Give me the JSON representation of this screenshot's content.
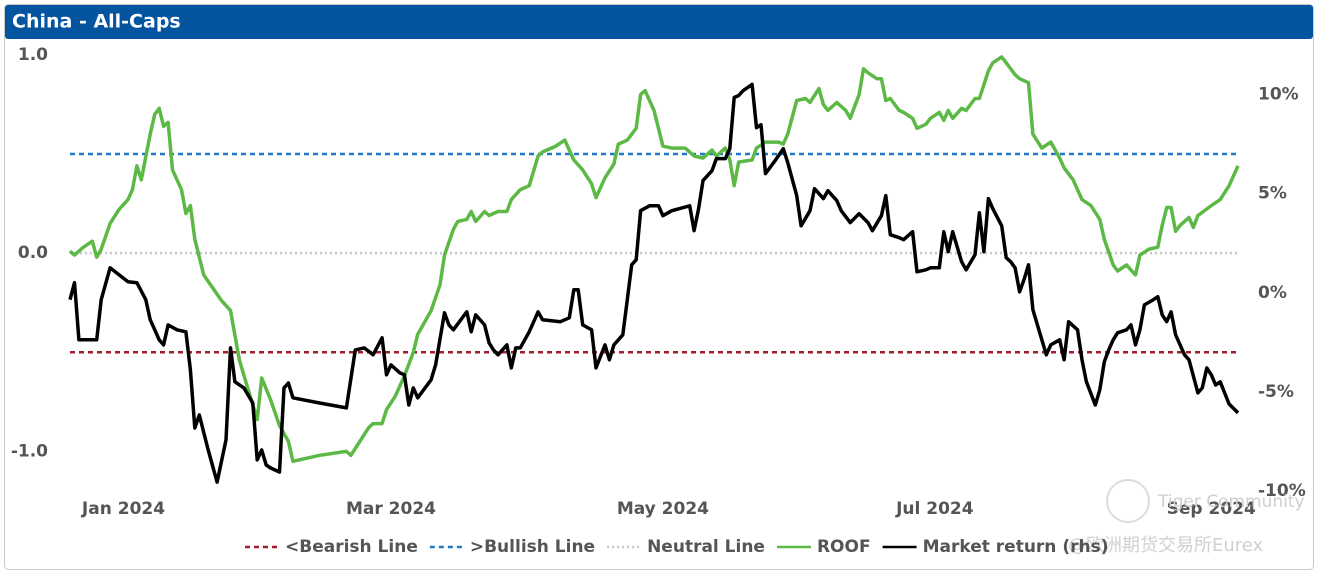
{
  "chart_data": {
    "type": "line",
    "title": "China - All-Caps",
    "xlim": [
      0,
      262
    ],
    "xticks": [
      {
        "value": 12,
        "label": "Jan 2024"
      },
      {
        "value": 72,
        "label": "Mar 2024"
      },
      {
        "value": 133,
        "label": "May 2024"
      },
      {
        "value": 194,
        "label": "Jul 2024"
      },
      {
        "value": 256,
        "label": "Sep 2024"
      }
    ],
    "ylim": [
      -1.2,
      1.05
    ],
    "yticks": [
      {
        "value": -1,
        "label": "-1.0"
      },
      {
        "value": 0,
        "label": "0.0"
      },
      {
        "value": 1,
        "label": "1.0"
      }
    ],
    "y2lim": [
      -10,
      12.5
    ],
    "y2ticks": [
      {
        "value": -10,
        "label": "-10%"
      },
      {
        "value": -5,
        "label": "-5%"
      },
      {
        "value": 0,
        "label": "0%"
      },
      {
        "value": 5,
        "label": "5%"
      },
      {
        "value": 10,
        "label": "10%"
      }
    ],
    "reference_lines": [
      {
        "name": "<Bearish Line",
        "value": -0.5,
        "color": "#a01e2d",
        "style": "dashed"
      },
      {
        "name": ">Bullish Line",
        "value": 0.5,
        "color": "#1f78c8",
        "style": "dashed"
      },
      {
        "name": "Neutral Line",
        "value": 0,
        "color": "#c8c8c8",
        "style": "dotted"
      }
    ],
    "series": [
      {
        "name": "ROOF",
        "color": "#5cb946",
        "x": [
          0,
          1,
          3,
          5,
          6,
          7,
          9,
          11,
          13,
          14,
          15,
          16,
          18,
          19,
          20,
          21,
          22,
          23,
          25,
          26,
          27,
          28,
          30,
          34,
          36,
          38,
          40,
          42,
          43,
          45,
          47,
          49,
          50,
          56,
          62,
          63,
          65,
          67,
          68,
          70,
          71,
          73,
          75,
          77,
          78,
          81,
          83,
          84,
          86,
          87,
          89,
          90,
          91,
          93,
          94,
          96,
          98,
          99,
          101,
          103,
          105,
          106,
          109,
          111,
          113,
          115,
          117,
          118,
          120,
          122,
          123,
          125,
          127,
          128,
          129,
          130,
          131,
          133,
          135,
          138,
          140,
          142,
          144,
          145,
          147,
          148,
          149,
          150,
          153,
          154,
          156,
          159,
          160,
          161,
          163,
          165,
          166,
          168,
          169,
          170,
          172,
          174,
          175,
          177,
          178,
          179,
          181,
          182,
          183,
          184,
          186,
          187,
          189,
          190,
          192,
          193,
          195,
          196,
          197,
          198,
          200,
          201,
          203,
          204,
          206,
          207,
          209,
          210,
          212,
          213,
          215,
          216,
          218,
          220,
          222,
          223,
          225,
          227,
          229,
          231,
          232,
          234,
          235,
          237,
          239,
          240,
          242,
          244,
          245,
          246,
          247,
          248,
          249,
          251,
          252,
          253,
          256,
          258,
          260,
          262
        ],
        "values": [
          0.01,
          -0.01,
          0.03,
          0.06,
          -0.02,
          0.02,
          0.15,
          0.22,
          0.27,
          0.32,
          0.44,
          0.37,
          0.6,
          0.7,
          0.73,
          0.64,
          0.66,
          0.42,
          0.32,
          0.2,
          0.24,
          0.07,
          -0.11,
          -0.24,
          -0.29,
          -0.54,
          -0.69,
          -0.84,
          -0.63,
          -0.74,
          -0.87,
          -0.95,
          -1.05,
          -1.02,
          -1.0,
          -1.02,
          -0.95,
          -0.88,
          -0.86,
          -0.86,
          -0.79,
          -0.72,
          -0.62,
          -0.5,
          -0.41,
          -0.29,
          -0.16,
          -0.01,
          0.12,
          0.16,
          0.17,
          0.21,
          0.16,
          0.21,
          0.19,
          0.21,
          0.21,
          0.27,
          0.32,
          0.34,
          0.49,
          0.51,
          0.54,
          0.57,
          0.47,
          0.42,
          0.35,
          0.28,
          0.38,
          0.45,
          0.55,
          0.57,
          0.63,
          0.8,
          0.82,
          0.77,
          0.72,
          0.54,
          0.53,
          0.53,
          0.49,
          0.48,
          0.52,
          0.49,
          0.53,
          0.47,
          0.34,
          0.46,
          0.47,
          0.53,
          0.56,
          0.56,
          0.55,
          0.6,
          0.77,
          0.78,
          0.76,
          0.83,
          0.75,
          0.72,
          0.76,
          0.72,
          0.68,
          0.8,
          0.93,
          0.91,
          0.88,
          0.88,
          0.77,
          0.78,
          0.72,
          0.71,
          0.68,
          0.63,
          0.65,
          0.68,
          0.71,
          0.67,
          0.72,
          0.68,
          0.73,
          0.72,
          0.78,
          0.78,
          0.92,
          0.96,
          0.99,
          0.96,
          0.9,
          0.88,
          0.86,
          0.6,
          0.53,
          0.56,
          0.48,
          0.43,
          0.37,
          0.27,
          0.24,
          0.17,
          0.07,
          -0.06,
          -0.09,
          -0.06,
          -0.11,
          -0.01,
          0.02,
          0.03,
          0.14,
          0.23,
          0.23,
          0.11,
          0.14,
          0.18,
          0.13,
          0.19,
          0.24,
          0.27,
          0.34,
          0.44
        ]
      },
      {
        "name": "Market return (rhs)",
        "color": "#000000",
        "axis": "y2",
        "x": [
          0,
          1,
          2,
          6,
          7,
          9,
          11,
          13,
          15,
          17,
          18,
          20,
          21,
          22,
          24,
          26,
          27,
          28,
          29,
          31,
          33,
          35,
          36,
          37,
          39,
          41,
          42,
          43,
          44,
          45,
          47,
          48,
          49,
          50,
          56,
          62,
          64,
          66,
          68,
          70,
          71,
          72,
          74,
          75,
          76,
          77,
          78,
          81,
          82,
          84,
          85,
          86,
          88,
          89,
          90,
          91,
          93,
          94,
          95,
          96,
          98,
          99,
          100,
          101,
          103,
          105,
          106,
          110,
          112,
          113,
          114,
          115,
          117,
          118,
          120,
          121,
          122,
          124,
          125,
          126,
          127,
          128,
          130,
          132,
          133,
          135,
          139,
          140,
          141,
          142,
          144,
          145,
          147,
          148,
          149,
          150,
          151,
          153,
          154,
          155,
          156,
          158,
          160,
          161,
          163,
          164,
          166,
          167,
          169,
          170,
          172,
          173,
          175,
          177,
          179,
          180,
          182,
          183,
          184,
          186,
          187,
          189,
          190,
          192,
          193,
          195,
          196,
          197,
          198,
          200,
          201,
          203,
          204,
          205,
          206,
          207,
          209,
          210,
          211,
          212,
          213,
          214,
          215,
          216,
          219,
          220,
          222,
          223,
          224,
          226,
          227,
          228,
          230,
          231,
          232,
          233,
          234,
          235,
          237,
          238,
          239,
          240,
          241,
          243,
          244,
          245,
          246,
          247,
          248,
          250,
          251,
          253,
          254,
          255,
          256,
          257,
          258,
          260,
          262
        ],
        "values": [
          -0.35,
          0.51,
          -2.37,
          -2.37,
          -0.35,
          1.26,
          0.91,
          0.56,
          0.51,
          -0.35,
          -1.36,
          -2.37,
          -2.63,
          -1.62,
          -1.87,
          -1.97,
          -3.89,
          -6.82,
          -6.16,
          -7.93,
          -9.55,
          -7.42,
          -2.78,
          -4.49,
          -4.8,
          -5.56,
          -8.43,
          -7.93,
          -8.69,
          -8.84,
          -9.04,
          -4.8,
          -4.55,
          -5.3,
          -5.56,
          -5.81,
          -2.88,
          -2.78,
          -3.13,
          -2.27,
          -4.14,
          -3.64,
          -4.04,
          -4.14,
          -5.66,
          -4.8,
          -5.3,
          -4.39,
          -3.64,
          -1.01,
          -1.62,
          -1.87,
          -1.26,
          -0.96,
          -1.97,
          -1.11,
          -1.62,
          -2.53,
          -2.88,
          -3.13,
          -2.63,
          -3.79,
          -2.78,
          -2.78,
          -1.97,
          -0.96,
          -1.36,
          -1.46,
          -1.26,
          0.15,
          0.15,
          -1.62,
          -1.87,
          -3.79,
          -2.63,
          -3.38,
          -2.63,
          -2.12,
          -0.35,
          1.41,
          1.67,
          4.14,
          4.39,
          4.39,
          3.89,
          4.14,
          4.39,
          3.13,
          4.24,
          5.66,
          6.16,
          6.77,
          6.77,
          7.27,
          9.85,
          9.95,
          10.2,
          10.51,
          8.33,
          8.48,
          6.01,
          6.62,
          7.27,
          6.57,
          4.9,
          3.38,
          4.14,
          5.25,
          4.75,
          5.15,
          4.65,
          4.14,
          3.54,
          3.99,
          3.54,
          3.13,
          3.89,
          4.9,
          2.93,
          2.78,
          2.68,
          3.08,
          1.06,
          1.16,
          1.26,
          1.26,
          3.08,
          2.07,
          3.08,
          1.57,
          1.16,
          1.92,
          4.04,
          2.07,
          4.75,
          4.24,
          3.38,
          1.77,
          1.57,
          1.26,
          0.05,
          0.66,
          1.41,
          -0.86,
          -3.13,
          -2.63,
          -2.37,
          -3.38,
          -1.46,
          -1.87,
          -3.38,
          -4.49,
          -5.66,
          -4.9,
          -3.48,
          -2.88,
          -2.37,
          -2.02,
          -1.87,
          -1.62,
          -2.63,
          -1.87,
          -0.61,
          -0.35,
          -0.2,
          -1.11,
          -1.46,
          -0.96,
          -2.12,
          -3.13,
          -3.38,
          -5.05,
          -4.8,
          -3.79,
          -4.14,
          -4.65,
          -4.49,
          -5.61,
          -6.06
        ]
      }
    ],
    "watermarks": [
      "Tiger Community",
      "@欧洲期货交易所Eurex"
    ]
  }
}
